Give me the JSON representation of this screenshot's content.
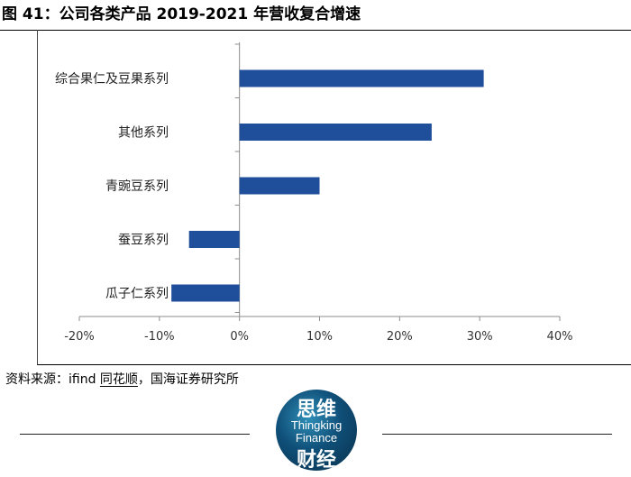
{
  "figure": {
    "title": "图 41：公司各类产品 2019-2021 年营收复合增速"
  },
  "chart_data": {
    "type": "bar",
    "orientation": "horizontal",
    "categories": [
      "综合果仁及豆果系列",
      "其他系列",
      "青豌豆系列",
      "蚕豆系列",
      "瓜子仁系列"
    ],
    "values": [
      30.5,
      24.0,
      10.0,
      -6.3,
      -8.5
    ],
    "xlim": [
      -20,
      40
    ],
    "x_ticks": [
      -20,
      -10,
      0,
      10,
      20,
      30,
      40
    ],
    "x_tick_labels": [
      "-20%",
      "-10%",
      "0%",
      "10%",
      "20%",
      "30%",
      "40%"
    ],
    "bar_color": "#1F4E9A",
    "grid": false,
    "legend": "none",
    "xlabel": "",
    "ylabel": ""
  },
  "source": {
    "prefix": "资料来源：ifind ",
    "underlined": "同花顺",
    "suffix": "，国海证券研究所"
  },
  "logo": {
    "line1": "思维",
    "line2": "Thingking",
    "line3": "Finance",
    "line4": "财经"
  }
}
